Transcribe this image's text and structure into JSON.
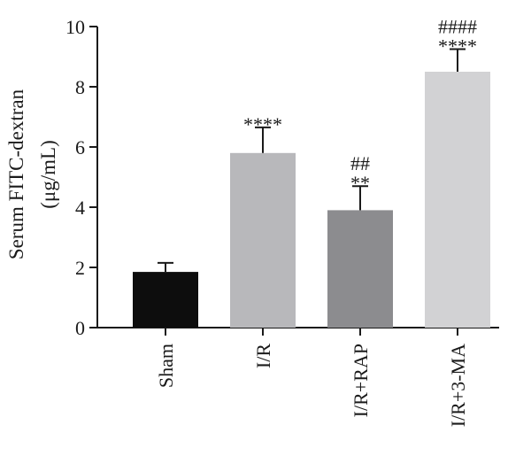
{
  "chart_data": {
    "type": "bar",
    "title": "",
    "xlabel": "",
    "ylabel": "Serum FITC-dextran",
    "ylabel_unit": "(μg/mL)",
    "ylim": [
      0,
      10
    ],
    "yticks": [
      0,
      2,
      4,
      6,
      8,
      10
    ],
    "grid": false,
    "legend": "none",
    "categories": [
      "Sham",
      "I/R",
      "I/R+RAP",
      "I/R+3-MA"
    ],
    "values": [
      1.85,
      5.8,
      3.9,
      8.5
    ],
    "error": [
      0.3,
      0.85,
      0.8,
      0.75
    ],
    "colors": [
      "#0d0d0d",
      "#b8b8bb",
      "#8c8c8f",
      "#d2d2d4"
    ],
    "annotations": [
      [],
      [
        "****"
      ],
      [
        "##",
        "**"
      ],
      [
        "####",
        "****"
      ]
    ]
  }
}
